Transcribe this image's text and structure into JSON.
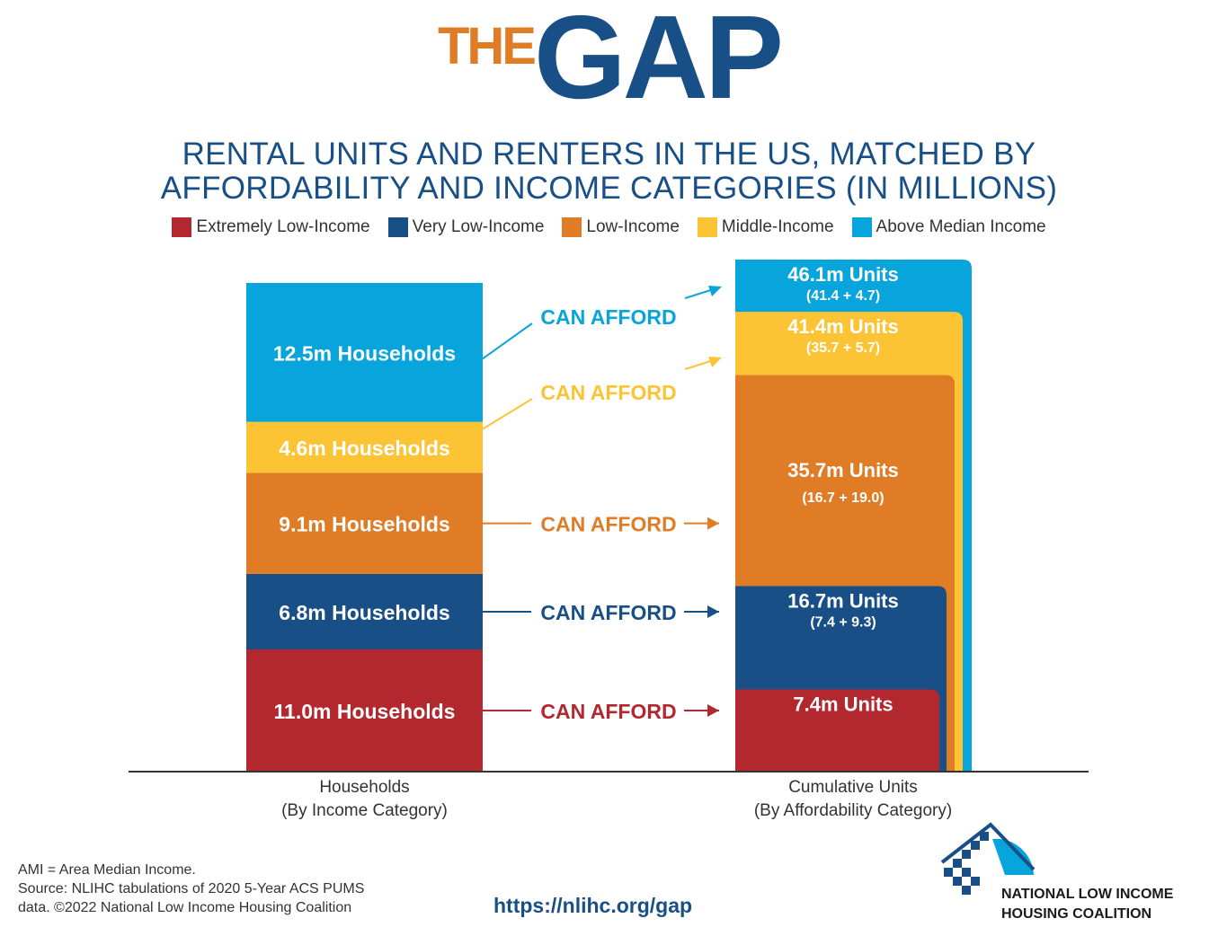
{
  "brand": {
    "the": "THE",
    "gap": "GAP"
  },
  "subtitle_line1": "RENTAL UNITS AND RENTERS IN THE US, MATCHED BY",
  "subtitle_line2": "AFFORDABILITY AND INCOME CATEGORIES (IN MILLIONS)",
  "legend": [
    {
      "label": "Extremely Low-Income",
      "color": "#b3272f"
    },
    {
      "label": "Very Low-Income",
      "color": "#184f86"
    },
    {
      "label": "Low-Income",
      "color": "#e07c26"
    },
    {
      "label": "Middle-Income",
      "color": "#fcc435"
    },
    {
      "label": "Above Median Income",
      "color": "#08a4dc"
    }
  ],
  "chart_data": {
    "type": "bar",
    "categories": [
      "Households (By Income Category)",
      "Cumulative Units (By Affordability Category)"
    ],
    "xlabels": [
      {
        "line1": "Households",
        "line2": "(By Income Category)"
      },
      {
        "line1": "Cumulative Units",
        "line2": "(By Affordability Category)"
      }
    ],
    "households": [
      {
        "category": "Extremely Low-Income",
        "value": 11.0,
        "label": "11.0m Households",
        "color": "#b3272f"
      },
      {
        "category": "Very Low-Income",
        "value": 6.8,
        "label": "6.8m Households",
        "color": "#184f86"
      },
      {
        "category": "Low-Income",
        "value": 9.1,
        "label": "9.1m Households",
        "color": "#e07c26"
      },
      {
        "category": "Middle-Income",
        "value": 4.6,
        "label": "4.6m Households",
        "color": "#fcc435"
      },
      {
        "category": "Above Median Income",
        "value": 12.5,
        "label": "12.5m Households",
        "color": "#08a4dc"
      }
    ],
    "units": [
      {
        "category": "Extremely Low-Income",
        "value": 7.4,
        "label": "7.4m Units",
        "sub": "",
        "color": "#b3272f"
      },
      {
        "category": "Very Low-Income",
        "value": 16.7,
        "label": "16.7m Units",
        "sub": "(7.4 + 9.3)",
        "color": "#184f86"
      },
      {
        "category": "Low-Income",
        "value": 35.7,
        "label": "35.7m Units",
        "sub": "(16.7 + 19.0)",
        "color": "#e07c26"
      },
      {
        "category": "Middle-Income",
        "value": 41.4,
        "label": "41.4m Units",
        "sub": "(35.7 + 5.7)",
        "color": "#fcc435"
      },
      {
        "category": "Above Median Income",
        "value": 46.1,
        "label": "46.1m Units",
        "sub": "(41.4 + 4.7)",
        "color": "#08a4dc"
      }
    ],
    "arrow_label": "CAN AFFORD"
  },
  "footnote": {
    "line1": "AMI = Area Median Income.",
    "line2": "Source: NLIHC tabulations of 2020 5-Year ACS PUMS",
    "line3": "data. ©2022 National Low Income Housing Coalition"
  },
  "url": "https://nlihc.org/gap",
  "org": {
    "line1": "NATIONAL LOW INCOME",
    "line2": "HOUSING COALITION"
  }
}
